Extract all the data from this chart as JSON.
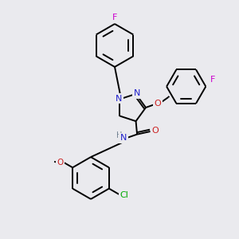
{
  "bg_color": "#eaeaee",
  "atom_colors": {
    "C": "#000000",
    "N": "#2020cc",
    "O": "#cc2020",
    "F": "#cc00cc",
    "Cl": "#00aa00",
    "H": "#708090"
  },
  "bond_color": "#000000",
  "bond_width": 1.4
}
